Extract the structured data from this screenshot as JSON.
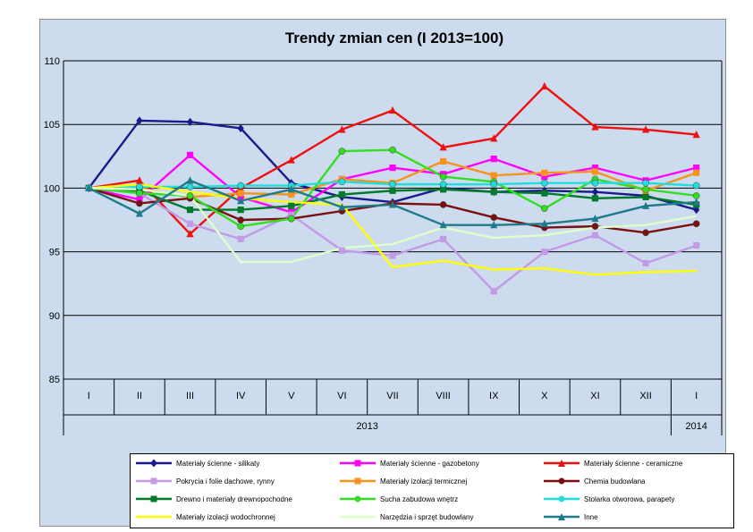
{
  "chart_data": {
    "type": "line",
    "title": "Trendy zmian cen (I 2013=100)",
    "categories": [
      "I",
      "II",
      "III",
      "IV",
      "V",
      "VI",
      "VII",
      "VIII",
      "IX",
      "X",
      "XI",
      "XII",
      "I"
    ],
    "year_labels": [
      {
        "label": "2013",
        "from": 0,
        "to": 11
      },
      {
        "label": "2014",
        "from": 12,
        "to": 12
      }
    ],
    "ylim": [
      85,
      110
    ],
    "yticks": [
      85,
      90,
      95,
      100,
      105,
      110
    ],
    "grid": true,
    "legend_position": "bottom",
    "series": [
      {
        "name": "Materiały ścienne - silikaty",
        "color": "#1a1a8c",
        "marker": "diamond",
        "values": [
          100,
          105.3,
          105.2,
          104.7,
          100.4,
          99.3,
          98.9,
          100.0,
          99.7,
          99.8,
          99.7,
          99.4,
          98.3
        ]
      },
      {
        "name": "Materiały ścienne - gazobetony",
        "color": "#ff00ff",
        "marker": "square",
        "values": [
          100,
          99.1,
          102.6,
          99.3,
          98.1,
          100.7,
          101.6,
          101.1,
          102.3,
          100.9,
          101.6,
          100.6,
          101.6
        ]
      },
      {
        "name": "Materiały ścienne - ceramiczne",
        "color": "#ee1111",
        "marker": "triangle",
        "values": [
          100,
          100.6,
          96.4,
          100.0,
          102.2,
          104.6,
          106.1,
          103.2,
          103.9,
          108.0,
          104.8,
          104.6,
          104.2
        ]
      },
      {
        "name": "Pokrycia i folie dachowe, rynny",
        "color": "#c39ae6",
        "marker": "square",
        "values": [
          100,
          99.6,
          97.2,
          96.0,
          97.9,
          95.1,
          94.7,
          96.0,
          91.9,
          95.0,
          96.3,
          94.1,
          95.5
        ]
      },
      {
        "name": "Materiały izolacji termicznej",
        "color": "#f7931e",
        "marker": "square",
        "values": [
          100,
          100.0,
          99.3,
          99.6,
          99.5,
          100.7,
          100.4,
          102.1,
          101.0,
          101.2,
          101.3,
          99.8,
          101.2
        ]
      },
      {
        "name": "Chemia budowlana",
        "color": "#7a1010",
        "marker": "circle",
        "values": [
          100,
          98.8,
          99.2,
          97.5,
          97.6,
          98.2,
          98.8,
          98.7,
          97.7,
          96.9,
          97.0,
          96.5,
          97.2
        ]
      },
      {
        "name": "Drewno i materiały drewnopochodne",
        "color": "#007a2a",
        "marker": "square",
        "values": [
          100,
          99.8,
          98.3,
          98.3,
          98.6,
          99.5,
          99.8,
          99.9,
          99.7,
          99.6,
          99.2,
          99.3,
          98.7
        ]
      },
      {
        "name": "Sucha zabudowa wnętrz",
        "color": "#33dd22",
        "marker": "circle",
        "values": [
          100,
          99.6,
          99.4,
          97.0,
          97.6,
          102.9,
          103.0,
          100.9,
          100.5,
          98.4,
          100.7,
          99.9,
          99.4
        ]
      },
      {
        "name": "Stolarka otworowa, parapety",
        "color": "#22dddd",
        "marker": "circle",
        "values": [
          100,
          100.1,
          100.1,
          100.2,
          100.2,
          100.5,
          100.3,
          100.3,
          100.3,
          100.4,
          100.4,
          100.4,
          100.2
        ]
      },
      {
        "name": "Materiały izolacji wodochronnej",
        "color": "#ffff00",
        "marker": "none",
        "values": [
          100,
          100.3,
          99.7,
          99.2,
          98.9,
          98.7,
          93.8,
          94.3,
          93.6,
          93.7,
          93.2,
          93.4,
          93.5
        ]
      },
      {
        "name": "Narzędzia i sprzęt budowlany",
        "color": "#ddffcc",
        "marker": "none",
        "values": [
          100,
          99.9,
          99.4,
          94.2,
          94.2,
          95.3,
          95.6,
          96.9,
          96.1,
          96.3,
          96.9,
          97.1,
          97.8
        ]
      },
      {
        "name": "Inne",
        "color": "#1f7a8a",
        "marker": "triangle",
        "values": [
          100,
          98.0,
          100.6,
          99.0,
          99.9,
          98.5,
          98.7,
          97.1,
          97.1,
          97.2,
          97.6,
          98.6,
          98.9
        ]
      }
    ]
  }
}
